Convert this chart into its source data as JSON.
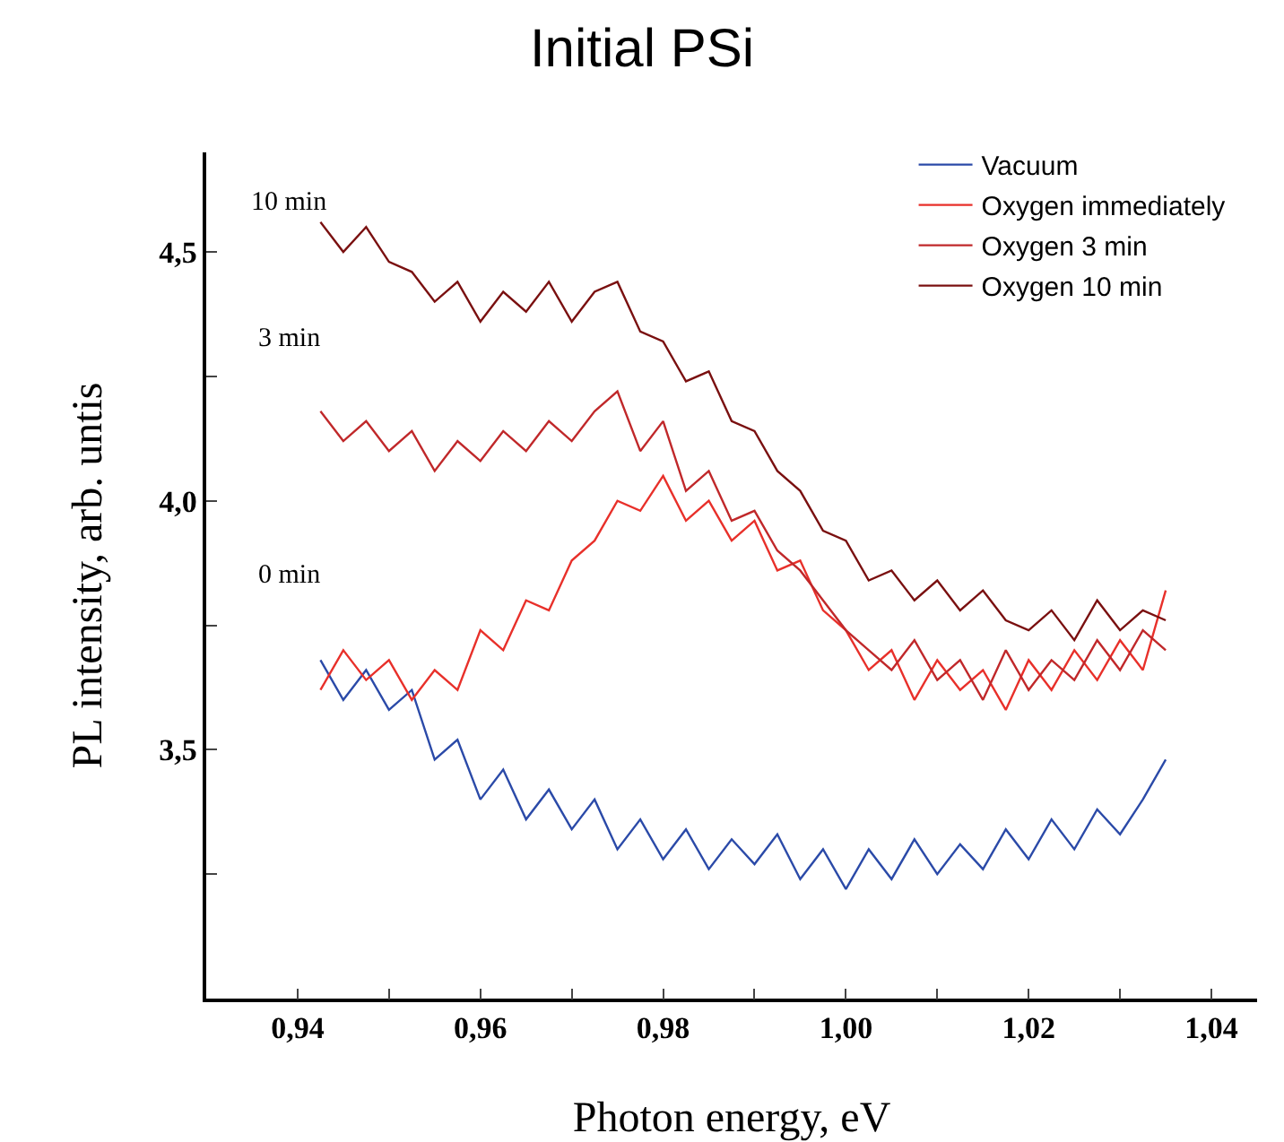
{
  "chart_data": {
    "type": "line",
    "title": "Initial PSi",
    "xlabel": "Photon energy, eV",
    "ylabel": "PL intensity, arb. untis",
    "x": [
      0.9425,
      0.945,
      0.9475,
      0.95,
      0.9525,
      0.955,
      0.9575,
      0.96,
      0.9625,
      0.965,
      0.9675,
      0.97,
      0.9725,
      0.975,
      0.9775,
      0.98,
      0.9825,
      0.985,
      0.9875,
      0.99,
      0.9925,
      0.995,
      0.9975,
      1.0,
      1.0025,
      1.005,
      1.0075,
      1.01,
      1.0125,
      1.015,
      1.0175,
      1.02,
      1.0225,
      1.025,
      1.0275,
      1.03,
      1.0325,
      1.035
    ],
    "series": [
      {
        "name": "Vacuum",
        "color": "#2b4aa8",
        "values": [
          3.68,
          3.6,
          3.66,
          3.58,
          3.62,
          3.48,
          3.52,
          3.4,
          3.46,
          3.36,
          3.42,
          3.34,
          3.4,
          3.3,
          3.36,
          3.28,
          3.34,
          3.26,
          3.32,
          3.27,
          3.33,
          3.24,
          3.3,
          3.22,
          3.3,
          3.24,
          3.32,
          3.25,
          3.31,
          3.26,
          3.34,
          3.28,
          3.36,
          3.3,
          3.38,
          3.33,
          3.4,
          3.48
        ]
      },
      {
        "name": "Oxygen immediately",
        "color": "#e8302a",
        "values": [
          3.62,
          3.7,
          3.64,
          3.68,
          3.6,
          3.66,
          3.62,
          3.74,
          3.7,
          3.8,
          3.78,
          3.88,
          3.92,
          4.0,
          3.98,
          4.05,
          3.96,
          4.0,
          3.92,
          3.96,
          3.86,
          3.88,
          3.78,
          3.74,
          3.66,
          3.7,
          3.6,
          3.68,
          3.62,
          3.66,
          3.58,
          3.68,
          3.62,
          3.7,
          3.64,
          3.72,
          3.66,
          3.82
        ]
      },
      {
        "name": "Oxygen 3 min",
        "color": "#c0282a",
        "values": [
          4.18,
          4.12,
          4.16,
          4.1,
          4.14,
          4.06,
          4.12,
          4.08,
          4.14,
          4.1,
          4.16,
          4.12,
          4.18,
          4.22,
          4.1,
          4.16,
          4.02,
          4.06,
          3.96,
          3.98,
          3.9,
          3.86,
          3.8,
          3.74,
          3.7,
          3.66,
          3.72,
          3.64,
          3.68,
          3.6,
          3.7,
          3.62,
          3.68,
          3.64,
          3.72,
          3.66,
          3.74,
          3.7
        ]
      },
      {
        "name": "Oxygen 10 min",
        "color": "#7a1010",
        "values": [
          4.56,
          4.5,
          4.55,
          4.48,
          4.46,
          4.4,
          4.44,
          4.36,
          4.42,
          4.38,
          4.44,
          4.36,
          4.42,
          4.44,
          4.34,
          4.32,
          4.24,
          4.26,
          4.16,
          4.14,
          4.06,
          4.02,
          3.94,
          3.92,
          3.84,
          3.86,
          3.8,
          3.84,
          3.78,
          3.82,
          3.76,
          3.74,
          3.78,
          3.72,
          3.8,
          3.74,
          3.78,
          3.76
        ]
      }
    ],
    "annotations": [
      "10 min",
      "3 min",
      "0 min"
    ],
    "xlim": [
      0.93,
      1.045
    ],
    "xticks": [
      {
        "value": 0.94,
        "label": "0,94"
      },
      {
        "value": 0.95,
        "label": null
      },
      {
        "value": 0.96,
        "label": "0,96"
      },
      {
        "value": 0.97,
        "label": null
      },
      {
        "value": 0.98,
        "label": "0,98"
      },
      {
        "value": 0.99,
        "label": null
      },
      {
        "value": 1.0,
        "label": "1,00"
      },
      {
        "value": 1.01,
        "label": null
      },
      {
        "value": 1.02,
        "label": "1,02"
      },
      {
        "value": 1.03,
        "label": null
      },
      {
        "value": 1.04,
        "label": "1,04"
      }
    ],
    "ylim": [
      3.0,
      4.7
    ],
    "yticks": [
      {
        "value": 3.25,
        "label": null
      },
      {
        "value": 3.5,
        "label": "3,5"
      },
      {
        "value": 3.75,
        "label": null
      },
      {
        "value": 4.0,
        "label": "4,0"
      },
      {
        "value": 4.25,
        "label": null
      },
      {
        "value": 4.5,
        "label": "4,5"
      }
    ],
    "grid": false,
    "legend": "top right",
    "marker": "none",
    "line_style": "solid"
  }
}
